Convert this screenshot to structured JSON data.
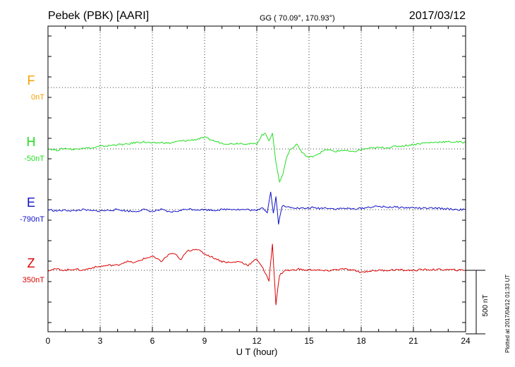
{
  "header": {
    "station": "Pebek (PBK)  [AARI]",
    "coords": "GG ( 70.09°, 170.93°)",
    "date": "2017/03/12"
  },
  "plotted_note": "Plotted at 2017/04/12 01:33 UT",
  "colors": {
    "F": "#f5a000",
    "H": "#22dd22",
    "E": "#1010c8",
    "Z": "#dd0000",
    "grid": "#000000"
  },
  "chart_data": {
    "type": "line",
    "title": "Pebek (PBK)  [AARI]",
    "xlabel": "U T (hour)",
    "ylabel": "",
    "xlim": [
      0,
      24
    ],
    "x_ticks": [
      "0",
      "3",
      "6",
      "9",
      "12",
      "15",
      "18",
      "21",
      "24"
    ],
    "scale_label": "500 nT",
    "scale_value_nT": 500,
    "panel_span_nT": 1500,
    "series": [
      {
        "name": "F",
        "baseline": "0nT",
        "baseline_nT": 0,
        "x": [],
        "values": []
      },
      {
        "name": "H",
        "baseline": "-50nT",
        "baseline_nT": -50,
        "x": [
          0,
          0.5,
          1,
          1.5,
          2,
          2.5,
          3,
          3.5,
          4,
          4.5,
          5,
          5.5,
          6,
          6.5,
          7,
          7.5,
          8,
          8.5,
          9,
          9.5,
          10,
          10.5,
          11,
          11.5,
          12,
          12.3,
          12.5,
          12.7,
          12.9,
          13.1,
          13.3,
          13.5,
          13.7,
          13.9,
          14.1,
          14.3,
          14.6,
          15,
          15.5,
          16,
          16.5,
          17,
          17.5,
          18,
          18.5,
          19,
          19.5,
          20,
          20.5,
          21,
          21.5,
          22,
          22.5,
          23,
          23.5,
          24
        ],
        "values": [
          -48,
          -60,
          -45,
          -55,
          -40,
          -45,
          -30,
          -25,
          -15,
          -15,
          0,
          5,
          -5,
          0,
          -5,
          10,
          15,
          25,
          40,
          15,
          -5,
          -10,
          -5,
          -10,
          -10,
          60,
          70,
          20,
          70,
          -150,
          -310,
          -250,
          -120,
          -60,
          -40,
          -10,
          -80,
          -120,
          -90,
          -55,
          -70,
          -60,
          -75,
          -55,
          -45,
          -40,
          -40,
          -30,
          -25,
          -15,
          -5,
          0,
          5,
          5,
          5,
          0
        ]
      },
      {
        "name": "E",
        "baseline": "-790nT",
        "baseline_nT": -790,
        "x": [
          0,
          0.5,
          1,
          1.5,
          2,
          2.5,
          3,
          3.5,
          4,
          4.5,
          5,
          5.5,
          6,
          6.5,
          7,
          7.5,
          8,
          8.5,
          9,
          9.5,
          10,
          10.5,
          11,
          11.5,
          12,
          12.3,
          12.6,
          12.8,
          12.95,
          13.1,
          13.25,
          13.45,
          13.7,
          14,
          14.4,
          14.8,
          15.2,
          15.6,
          16,
          16.5,
          17,
          17.5,
          18,
          18.5,
          19,
          19.5,
          20,
          20.5,
          21,
          21.5,
          22,
          22.5,
          23,
          23.5,
          24
        ],
        "values": [
          -790,
          -800,
          -795,
          -800,
          -790,
          -800,
          -800,
          -795,
          -790,
          -800,
          -805,
          -790,
          -805,
          -790,
          -810,
          -800,
          -785,
          -790,
          -790,
          -795,
          -790,
          -785,
          -790,
          -790,
          -800,
          -770,
          -810,
          -650,
          -820,
          -690,
          -900,
          -760,
          -770,
          -770,
          -780,
          -780,
          -775,
          -780,
          -775,
          -785,
          -780,
          -785,
          -780,
          -770,
          -765,
          -770,
          -770,
          -775,
          -775,
          -780,
          -780,
          -780,
          -785,
          -790,
          -790
        ]
      },
      {
        "name": "Z",
        "baseline": "350nT",
        "baseline_nT": 350,
        "x": [
          0,
          0.5,
          1,
          1.5,
          2,
          2.5,
          3,
          3.5,
          4,
          4.5,
          5,
          5.5,
          6,
          6.5,
          7,
          7.3,
          7.6,
          8,
          8.5,
          9,
          9.5,
          10,
          10.5,
          11,
          11.5,
          12,
          12.3,
          12.5,
          12.7,
          12.9,
          13.1,
          13.3,
          13.6,
          14,
          14.4,
          14.8,
          15.2,
          15.6,
          16,
          16.5,
          17,
          17.5,
          18,
          18.5,
          19,
          19.5,
          20,
          20.5,
          21,
          21.5,
          22,
          22.5,
          23,
          23.5,
          24
        ],
        "values": [
          350,
          360,
          350,
          360,
          350,
          370,
          380,
          390,
          390,
          420,
          410,
          440,
          460,
          420,
          480,
          480,
          430,
          500,
          520,
          480,
          450,
          420,
          410,
          420,
          390,
          440,
          380,
          320,
          270,
          560,
          80,
          310,
          350,
          350,
          360,
          350,
          355,
          350,
          345,
          355,
          360,
          350,
          335,
          345,
          350,
          350,
          355,
          350,
          350,
          355,
          355,
          355,
          355,
          352,
          350
        ]
      }
    ]
  }
}
